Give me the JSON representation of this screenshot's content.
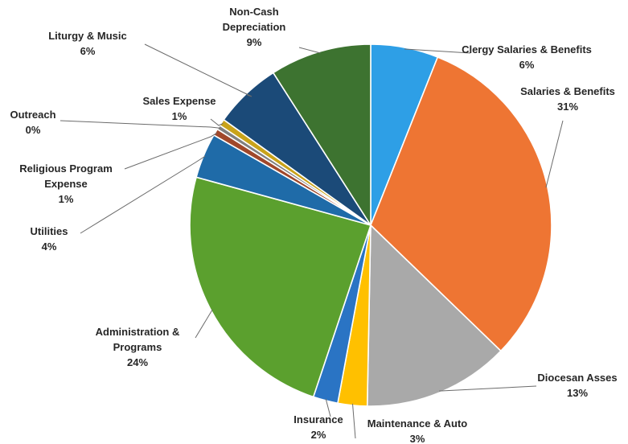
{
  "chart_data": {
    "type": "pie",
    "title": "",
    "start_angle_deg": 0,
    "direction": "clockwise",
    "slices": [
      {
        "name": "Clergy Salaries & Benefits",
        "lines": [
          "Clergy Salaries & Benefits",
          "6%"
        ],
        "value": 6,
        "percent_label": "6%",
        "color": "#2e9fe6"
      },
      {
        "name": "Salaries & Benefits",
        "lines": [
          "Salaries & Benefits",
          "31%"
        ],
        "value": 31,
        "percent_label": "31%",
        "color": "#ee7533"
      },
      {
        "name": "Diocesan Asses",
        "lines": [
          "Diocesan Asses",
          "13%"
        ],
        "value": 13,
        "percent_label": "13%",
        "color": "#a9a9a9"
      },
      {
        "name": "Maintenance & Auto",
        "lines": [
          "Maintenance & Auto",
          "3%"
        ],
        "value": 2.6,
        "percent_label": "3%",
        "color": "#ffc000"
      },
      {
        "name": "Insurance",
        "lines": [
          "Insurance",
          "2%"
        ],
        "value": 2.2,
        "percent_label": "2%",
        "color": "#2a74c4"
      },
      {
        "name": "Administration & Programs",
        "lines": [
          "Administration &",
          "Programs",
          "24%"
        ],
        "value": 24,
        "percent_label": "24%",
        "color": "#5ba02e"
      },
      {
        "name": "Utilities",
        "lines": [
          "Utilities",
          "4%"
        ],
        "value": 4,
        "percent_label": "4%",
        "color": "#1f6ba8"
      },
      {
        "name": "Religious Program Expense",
        "lines": [
          "Religious Program",
          "Expense",
          "1%"
        ],
        "value": 0.6,
        "percent_label": "1%",
        "color": "#a0482b"
      },
      {
        "name": "Outreach",
        "lines": [
          "Outreach",
          "0%"
        ],
        "value": 0.4,
        "percent_label": "0%",
        "color": "#808080"
      },
      {
        "name": "Sales Expense",
        "lines": [
          "Sales Expense",
          "1%"
        ],
        "value": 0.6,
        "percent_label": "1%",
        "color": "#c9a31a"
      },
      {
        "name": "Liturgy & Music",
        "lines": [
          "Liturgy & Music",
          "6%"
        ],
        "value": 6,
        "percent_label": "6%",
        "color": "#1b4a78"
      },
      {
        "name": "Non-Cash Depreciation",
        "lines": [
          "Non-Cash",
          "Depreciation",
          "9%"
        ],
        "value": 9,
        "percent_label": "9%",
        "color": "#3d7330"
      }
    ]
  }
}
